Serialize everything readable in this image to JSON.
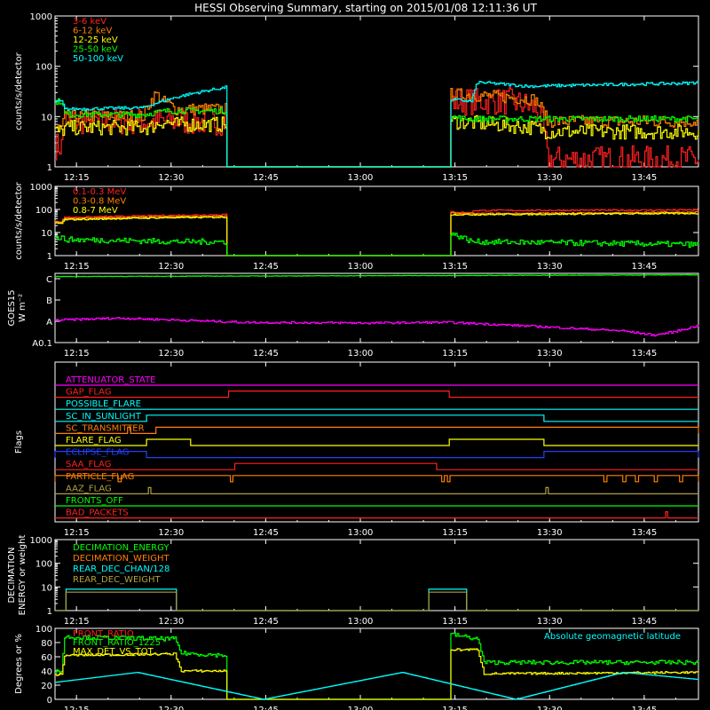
{
  "title": "HESSI Observing Summary, starting on 2015/01/08 12:11:36 UT",
  "time_axis": {
    "range_minutes": [
      0,
      102
    ],
    "tick_labels": [
      "12:15",
      "12:30",
      "12:45",
      "13:00",
      "13:15",
      "13:30",
      "13:45"
    ],
    "tick_minutes": [
      3.4,
      18.4,
      33.4,
      48.4,
      63.4,
      78.4,
      93.4
    ]
  },
  "colors": {
    "red": "#ff2020",
    "orange": "#ff8000",
    "yellow": "#ffff00",
    "green": "#00ff00",
    "cyan": "#00ffff",
    "magenta": "#ff00ff",
    "blue": "#2040ff",
    "olive": "#b0a040",
    "white": "#ffffff"
  },
  "chart_data": [
    {
      "id": "xray-low",
      "type": "line",
      "ylabel": "counts/s/detector",
      "yscale": "log",
      "ylim": [
        1,
        1000
      ],
      "y_tick_labels": [
        "1",
        "10",
        "100",
        "1000"
      ],
      "series": [
        {
          "name": "3-6 keV",
          "color": "#ff2020",
          "noise": 0.55,
          "x": [
            0,
            1,
            1.5,
            15,
            17,
            19,
            27,
            27.1,
            62.5,
            62.6,
            68,
            70,
            72,
            76,
            78,
            100,
            102
          ],
          "y": [
            2.6,
            2.6,
            8,
            8,
            8,
            8,
            8,
            1,
            1,
            20,
            20,
            20,
            20,
            15,
            1.4,
            1.4,
            1.4
          ]
        },
        {
          "name": "6-12 keV",
          "color": "#ff8000",
          "noise": 0.25,
          "x": [
            0,
            1,
            1.5,
            14,
            16,
            17,
            18,
            19,
            27,
            27.1,
            62.5,
            62.6,
            70,
            76,
            78,
            100,
            102
          ],
          "y": [
            6,
            6,
            10,
            10,
            28,
            20,
            18,
            14,
            14,
            1,
            1,
            28,
            25,
            22,
            8,
            8,
            8
          ]
        },
        {
          "name": "12-25 keV",
          "color": "#ffff00",
          "noise": 0.3,
          "x": [
            0,
            1,
            1.5,
            15,
            17,
            19,
            27,
            27.1,
            62.5,
            62.6,
            76,
            78,
            100,
            102
          ],
          "y": [
            5,
            5,
            6,
            6,
            8,
            7,
            7,
            1,
            1,
            8,
            6,
            5,
            5,
            5
          ]
        },
        {
          "name": "25-50 keV",
          "color": "#00ff00",
          "noise": 0.12,
          "x": [
            0,
            1,
            1.5,
            14,
            16,
            18,
            27,
            27.1,
            62.5,
            62.6,
            65,
            78,
            100,
            102
          ],
          "y": [
            20,
            20,
            11,
            11,
            12,
            13,
            13,
            1,
            1,
            10,
            9,
            9,
            9,
            9
          ]
        },
        {
          "name": "50-100 keV",
          "color": "#00ffff",
          "noise": 0.06,
          "x": [
            0,
            1,
            1.5,
            14,
            27,
            27.1,
            62.5,
            62.6,
            66,
            67,
            75,
            100,
            102
          ],
          "y": [
            20,
            20,
            14,
            15,
            38,
            1,
            1,
            22,
            20,
            48,
            40,
            46,
            48
          ]
        }
      ]
    },
    {
      "id": "xray-high",
      "type": "line",
      "ylabel": "counts/s/detector",
      "yscale": "log",
      "ylim": [
        1,
        1000
      ],
      "y_tick_labels": [
        "1",
        "10",
        "100",
        "1000"
      ],
      "series": [
        {
          "name": "0.1-0.3 MeV",
          "color": "#ff2020",
          "noise": 0.06,
          "x": [
            0,
            1,
            1.5,
            18,
            27,
            27.1,
            62.5,
            62.6,
            66,
            66.1,
            102
          ],
          "y": [
            30,
            30,
            45,
            55,
            60,
            1,
            1,
            80,
            70,
            90,
            95
          ]
        },
        {
          "name": "0.3-0.8 MeV",
          "color": "#ff8000",
          "noise": 0.06,
          "x": [
            0,
            1,
            1.5,
            18,
            27,
            27.1,
            62.5,
            62.6,
            66,
            102
          ],
          "y": [
            28,
            28,
            40,
            48,
            50,
            1,
            1,
            70,
            65,
            75
          ]
        },
        {
          "name": "0.8-7 MeV",
          "color": "#ffff00",
          "noise": 0.06,
          "x": [
            0,
            1,
            1.5,
            18,
            27,
            27.1,
            62.5,
            62.6,
            66,
            102
          ],
          "y": [
            25,
            25,
            36,
            44,
            46,
            1,
            1,
            60,
            60,
            68
          ]
        },
        {
          "name": "",
          "color": "#00ff00",
          "noise": 0.25,
          "x": [
            0,
            1,
            1.5,
            20,
            27,
            27.1,
            62.5,
            62.6,
            66,
            102
          ],
          "y": [
            6,
            6,
            5,
            4,
            4,
            1,
            1,
            9,
            4,
            3
          ]
        }
      ]
    },
    {
      "id": "goes",
      "type": "line",
      "ylabel": "GOES15",
      "ylabel2": "W m⁻²",
      "yscale": "log-class",
      "ylim": [
        0,
        3.25
      ],
      "y_tick_labels": [
        "A0.1",
        "A",
        "B",
        "C"
      ],
      "series": [
        {
          "name": "",
          "color": "#ff00ff",
          "noise": 0.05,
          "x": [
            0,
            10,
            30,
            50,
            62,
            70,
            80,
            90,
            95,
            98,
            102
          ],
          "y": [
            1.05,
            1.15,
            0.95,
            0.92,
            0.95,
            0.85,
            0.7,
            0.55,
            0.35,
            0.5,
            0.8
          ]
        },
        {
          "name": "",
          "color": "#00ff00",
          "noise": 0.01,
          "x": [
            0,
            102
          ],
          "y": [
            3.1,
            3.18
          ]
        }
      ]
    },
    {
      "id": "flags",
      "type": "line",
      "ylabel": "Flags",
      "rows": [
        {
          "name": "ATTENUATOR_STATE",
          "color": "#ff00ff",
          "segments": []
        },
        {
          "name": "GAP_FLAG",
          "color": "#ff2020",
          "segments": [
            [
              27.5,
              62.5
            ]
          ]
        },
        {
          "name": "POSSIBLE_FLARE",
          "color": "#00ffff",
          "segments": []
        },
        {
          "name": "SC_IN_SUNLIGHT",
          "color": "#00ffff",
          "segments": [
            [
              14.5,
              77.5
            ]
          ]
        },
        {
          "name": "SC_TRANSMITTER",
          "color": "#ff8000",
          "segments": [
            [
              11.5,
              12
            ],
            [
              16,
              102
            ]
          ]
        },
        {
          "name": "FLARE_FLAG",
          "color": "#ffff00",
          "segments": [
            [
              14.5,
              21.5
            ],
            [
              62.5,
              77.5
            ]
          ]
        },
        {
          "name": "ECLIPSE_FLAG",
          "color": "#2040ff",
          "segments": [
            [
              0,
              14.5
            ],
            [
              77.5,
              102
            ]
          ]
        },
        {
          "name": "SAA_FLAG",
          "color": "#ff2020",
          "segments": [
            [
              28.5,
              60.5
            ]
          ]
        },
        {
          "name": "PARTICLE_FLAG",
          "color": "#ff8000",
          "segments": [
            [
              0,
              10
            ],
            [
              10.5,
              27.8
            ],
            [
              28.2,
              61.3
            ],
            [
              61.7,
              62.2
            ],
            [
              62.6,
              87
            ],
            [
              87.5,
              90
            ],
            [
              90.5,
              92
            ],
            [
              92.5,
              95
            ],
            [
              95.5,
              99
            ],
            [
              99.5,
              102
            ]
          ]
        },
        {
          "name": "AAZ_FLAG",
          "color": "#b0a040",
          "segments": [
            [
              14.8,
              15.2
            ],
            [
              77.8,
              78.2
            ]
          ]
        },
        {
          "name": "FRONTS_OFF",
          "color": "#00ff00",
          "segments": []
        },
        {
          "name": "BAD_PACKETS",
          "color": "#ff2020",
          "segments": [
            [
              96.8,
              97.1
            ]
          ]
        }
      ]
    },
    {
      "id": "decimation",
      "type": "line",
      "ylabel": "DECIMATION",
      "ylabel2": "ENERGY or weight",
      "yscale": "log",
      "ylim": [
        1,
        1000
      ],
      "y_tick_labels": [
        "1",
        "10",
        "100",
        "1000"
      ],
      "series": [
        {
          "name": "DECIMATION_ENERGY",
          "color": "#00ff00",
          "noise": 0,
          "x": [],
          "y": []
        },
        {
          "name": "DECIMATION_WEIGHT",
          "color": "#ff8000",
          "noise": 0,
          "x": [],
          "y": []
        },
        {
          "name": "REAR_DEC_CHAN/128",
          "color": "#00ffff",
          "noise": 0,
          "x": [
            0,
            1.5,
            1.6,
            19,
            19.1,
            59,
            59.1,
            65,
            65.1,
            102
          ],
          "y": [
            1,
            1,
            8,
            8,
            1,
            1,
            8,
            8,
            1,
            1
          ]
        },
        {
          "name": "REAR_DEC_WEIGHT",
          "color": "#b0a040",
          "noise": 0,
          "x": [
            0,
            1.5,
            1.6,
            19,
            19.1,
            59,
            59.1,
            65,
            65.1,
            102
          ],
          "y": [
            1,
            1,
            6,
            6,
            1,
            1,
            6,
            6,
            1,
            1
          ]
        }
      ]
    },
    {
      "id": "ratios",
      "type": "line",
      "ylabel": "Degrees or %",
      "ylim": [
        0,
        100
      ],
      "y_tick_labels": [
        "0",
        "20",
        "40",
        "60",
        "80",
        "100"
      ],
      "annotation": "Absolute geomagnetic latitude",
      "series": [
        {
          "name": "FRONT_RATIO",
          "color": "#ff2020",
          "noise": 0,
          "x": [],
          "y": []
        },
        {
          "name": "FRONT_RATIO_1225",
          "color": "#00ff00",
          "noise": 3,
          "x": [
            0,
            1,
            1.5,
            19,
            20,
            27,
            27.1,
            62.5,
            62.6,
            67,
            68,
            102
          ],
          "y": [
            40,
            40,
            88,
            85,
            65,
            62,
            0,
            0,
            92,
            85,
            52,
            52
          ]
        },
        {
          "name": "MAX_DET_VS_TOT",
          "color": "#ffff00",
          "noise": 1.5,
          "x": [
            0,
            1,
            1.5,
            19,
            20,
            27,
            27.1,
            62.5,
            62.6,
            67,
            68,
            102
          ],
          "y": [
            35,
            35,
            62,
            64,
            40,
            40,
            0,
            0,
            70,
            70,
            36,
            38
          ]
        },
        {
          "name": "",
          "color": "#00ffff",
          "noise": 0,
          "x": [
            0,
            13,
            33,
            55,
            73,
            90,
            102
          ],
          "y": [
            24,
            38,
            0,
            38,
            0,
            38,
            28
          ]
        }
      ]
    }
  ]
}
